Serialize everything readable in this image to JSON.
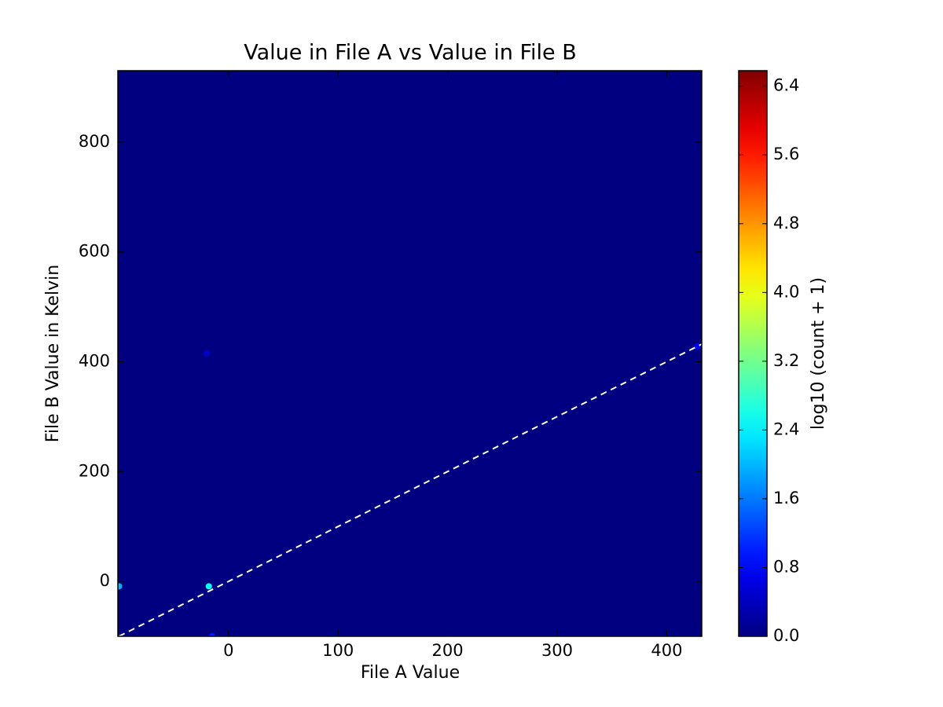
{
  "chart_data": {
    "type": "hist2d",
    "title": "Value in File A vs Value in File B",
    "x_label": "File A Value",
    "y_label": "File B Value in Kelvin",
    "x": [
      -18,
      -20,
      -100,
      -15,
      428
    ],
    "y": [
      -9,
      415,
      -9,
      -100,
      428
    ],
    "values": [
      2.5,
      0.5,
      2.0,
      1.0,
      0.8
    ],
    "xlim": [
      -101,
      432
    ],
    "ylim": [
      -100,
      930
    ],
    "xticks": [
      0,
      100,
      200,
      300,
      400
    ],
    "yticks": [
      0,
      200,
      400,
      600,
      800
    ],
    "colormap": "jet",
    "identity_line": true,
    "colorbar_label": "log10 (count + 1)",
    "colorbar_lim": [
      0,
      6.58
    ],
    "colorbar_ticks": [
      {
        "value": 0,
        "label": "0.0"
      },
      {
        "value": 0.8,
        "label": "0.8"
      },
      {
        "value": 1.6,
        "label": "1.6"
      },
      {
        "value": 2.4,
        "label": "2.4"
      },
      {
        "value": 3.2,
        "label": "3.2"
      },
      {
        "value": 4.0,
        "label": "4.0"
      },
      {
        "value": 4.8,
        "label": "4.8"
      },
      {
        "value": 5.6,
        "label": "5.6"
      },
      {
        "value": 6.4,
        "label": "6.4"
      }
    ]
  }
}
